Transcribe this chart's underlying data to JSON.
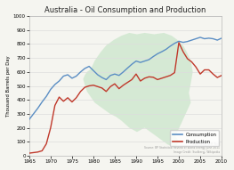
{
  "title": "Australia - Oil Consumption and Production",
  "ylabel": "Thousand Barrels per Day",
  "xlim": [
    1965,
    2010
  ],
  "ylim": [
    0,
    1000
  ],
  "yticks": [
    0,
    100,
    200,
    300,
    400,
    500,
    600,
    700,
    800,
    900,
    1000
  ],
  "xticks": [
    1965,
    1970,
    1975,
    1980,
    1985,
    1990,
    1995,
    2000,
    2005,
    2010
  ],
  "consumption_color": "#5b8ec4",
  "production_color": "#c0392b",
  "australia_fill_color": "#d0e8d0",
  "background_color": "#f5f5f0",
  "grid_color": "#dddddd",
  "consumption_years": [
    1965,
    1966,
    1967,
    1968,
    1969,
    1970,
    1971,
    1972,
    1973,
    1974,
    1975,
    1976,
    1977,
    1978,
    1979,
    1980,
    1981,
    1982,
    1983,
    1984,
    1985,
    1986,
    1987,
    1988,
    1989,
    1990,
    1991,
    1992,
    1993,
    1994,
    1995,
    1996,
    1997,
    1998,
    1999,
    2000,
    2001,
    2002,
    2003,
    2004,
    2005,
    2006,
    2007,
    2008,
    2009,
    2010
  ],
  "consumption_values": [
    260,
    300,
    340,
    385,
    425,
    475,
    510,
    535,
    570,
    580,
    555,
    570,
    600,
    625,
    640,
    610,
    580,
    560,
    545,
    575,
    585,
    575,
    600,
    628,
    655,
    678,
    668,
    678,
    688,
    710,
    730,
    745,
    762,
    785,
    805,
    820,
    812,
    818,
    828,
    838,
    848,
    838,
    842,
    838,
    828,
    842
  ],
  "production_years": [
    1965,
    1966,
    1967,
    1968,
    1969,
    1970,
    1971,
    1972,
    1973,
    1974,
    1975,
    1976,
    1977,
    1978,
    1979,
    1980,
    1981,
    1982,
    1983,
    1984,
    1985,
    1986,
    1987,
    1988,
    1989,
    1990,
    1991,
    1992,
    1993,
    1994,
    1995,
    1996,
    1997,
    1998,
    1999,
    2000,
    2001,
    2002,
    2003,
    2004,
    2005,
    2006,
    2007,
    2008,
    2009,
    2010
  ],
  "production_values": [
    18,
    22,
    26,
    35,
    85,
    200,
    360,
    420,
    390,
    415,
    385,
    415,
    460,
    490,
    500,
    505,
    495,
    485,
    460,
    495,
    515,
    480,
    505,
    525,
    545,
    585,
    535,
    555,
    565,
    562,
    545,
    555,
    565,
    575,
    595,
    810,
    745,
    695,
    672,
    635,
    585,
    615,
    615,
    585,
    560,
    575
  ],
  "legend_entries": [
    "Consumption",
    "Production"
  ],
  "source_text": "Prepared by: WM Wolf\nSource: BP Statistical Review of World Energy June 2011\nImage Credit: Ssolbergj, Wikipedia",
  "aus_x": [
    0.32,
    0.34,
    0.37,
    0.4,
    0.44,
    0.48,
    0.52,
    0.56,
    0.6,
    0.65,
    0.7,
    0.74,
    0.77,
    0.8,
    0.82,
    0.84,
    0.85,
    0.84,
    0.83,
    0.84,
    0.82,
    0.8,
    0.78,
    0.76,
    0.78,
    0.76,
    0.72,
    0.68,
    0.64,
    0.6,
    0.56,
    0.52,
    0.48,
    0.45,
    0.42,
    0.4,
    0.37,
    0.34,
    0.32,
    0.3,
    0.29,
    0.28,
    0.29,
    0.3,
    0.32
  ],
  "aus_y": [
    0.62,
    0.68,
    0.74,
    0.79,
    0.83,
    0.86,
    0.88,
    0.87,
    0.88,
    0.87,
    0.88,
    0.86,
    0.83,
    0.79,
    0.74,
    0.68,
    0.6,
    0.52,
    0.45,
    0.38,
    0.32,
    0.26,
    0.2,
    0.14,
    0.1,
    0.06,
    0.08,
    0.12,
    0.16,
    0.2,
    0.17,
    0.2,
    0.25,
    0.28,
    0.3,
    0.32,
    0.35,
    0.38,
    0.42,
    0.46,
    0.5,
    0.55,
    0.58,
    0.6,
    0.62
  ]
}
